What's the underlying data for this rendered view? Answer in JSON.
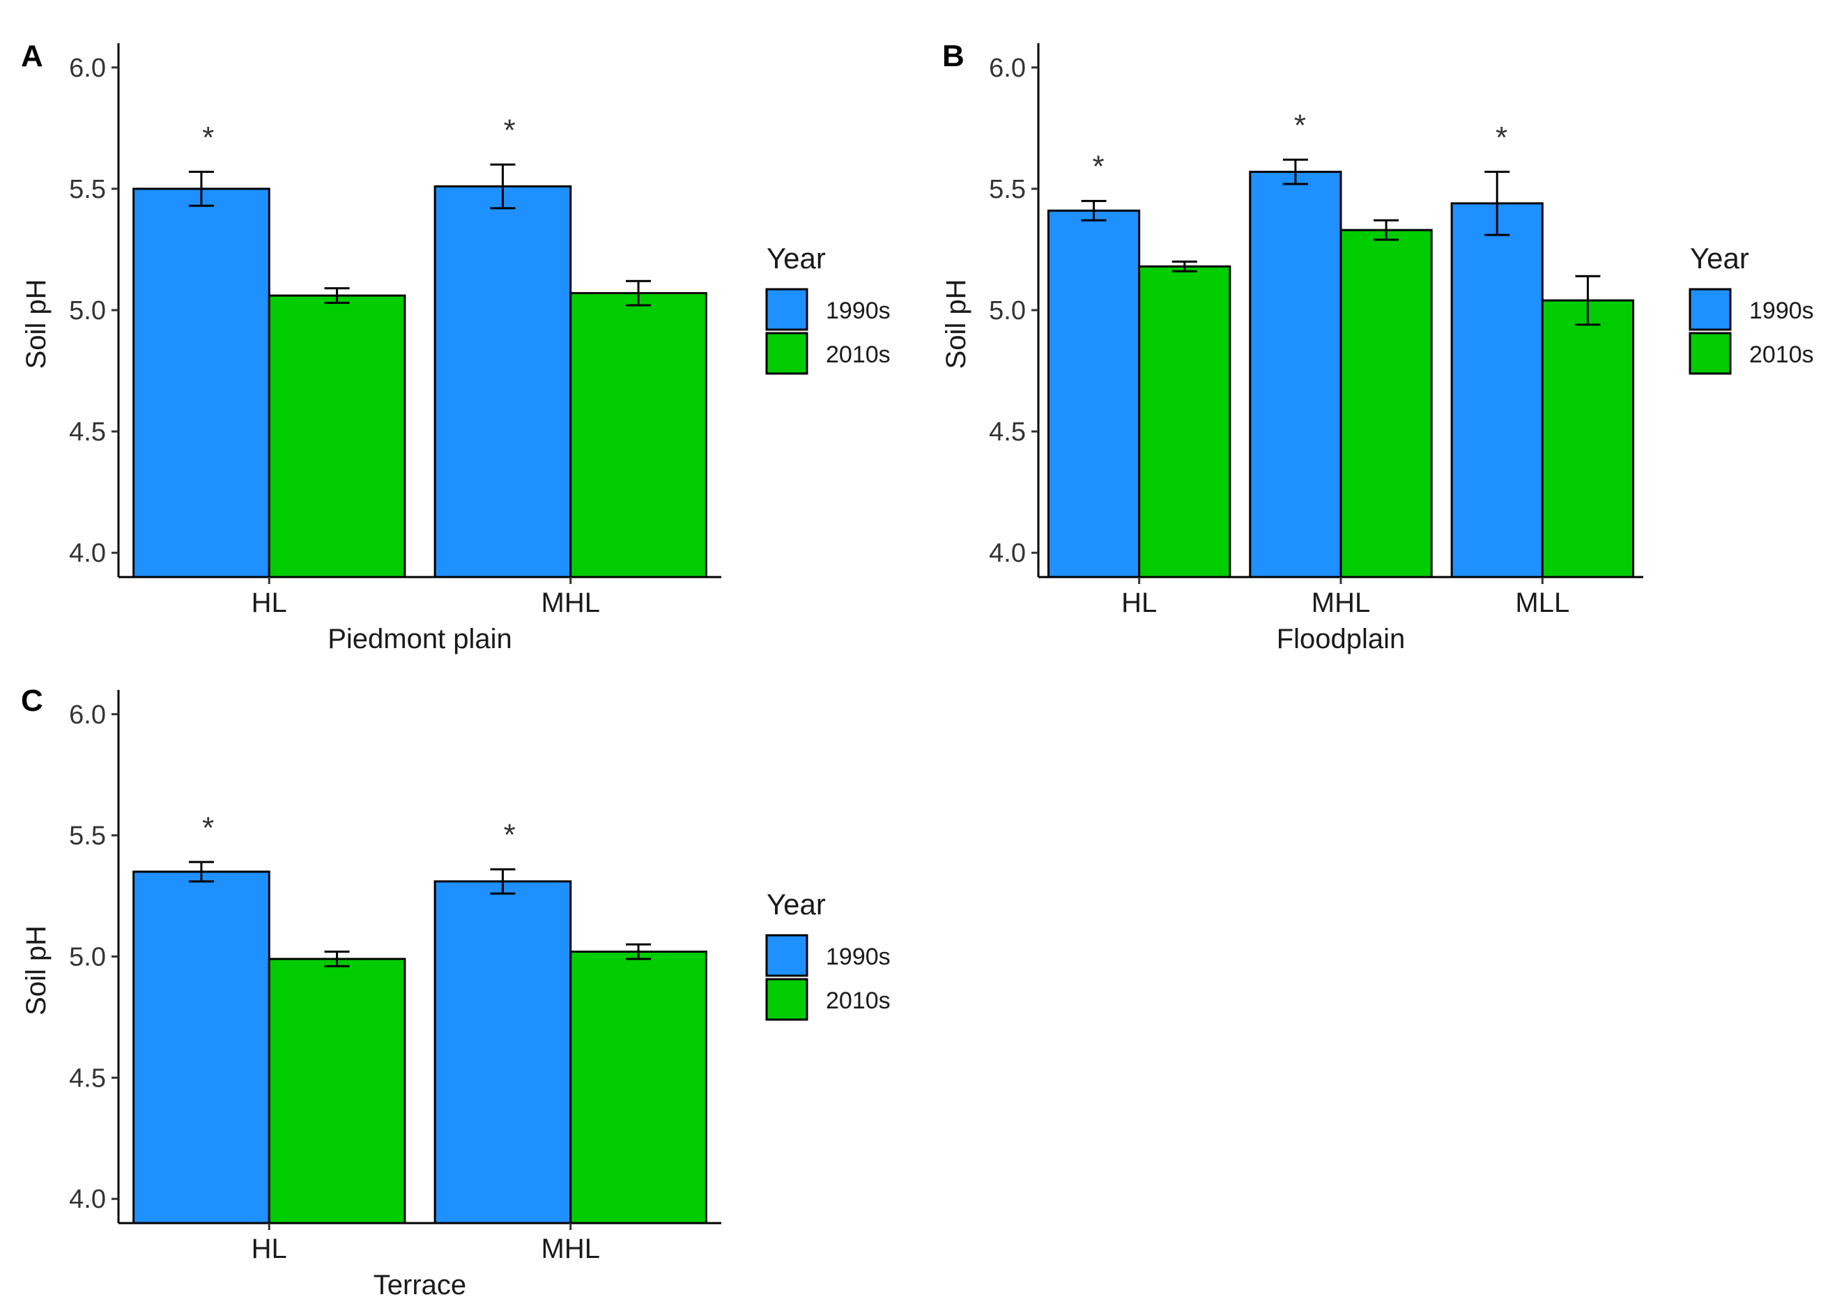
{
  "figure": {
    "y_axis_label": "Soil pH",
    "legend_title": "Year",
    "colors": {
      "1990s": "#1e90ff",
      "2010s": "#00cd00"
    }
  },
  "chart_data": [
    {
      "panel": "A",
      "type": "bar",
      "title": "",
      "xlabel": "Piedmont plain",
      "ylabel": "Soil pH",
      "ylim": [
        3.9,
        6.1
      ],
      "yticks": [
        "4.0",
        "4.5",
        "5.0",
        "5.5",
        "6.0"
      ],
      "categories": [
        "HL",
        "MHL"
      ],
      "series": [
        {
          "name": "1990s",
          "values": [
            5.5,
            5.51
          ],
          "errors": [
            0.07,
            0.09
          ]
        },
        {
          "name": "2010s",
          "values": [
            5.06,
            5.07
          ],
          "errors": [
            0.03,
            0.05
          ]
        }
      ],
      "significance": [
        "*",
        "*"
      ],
      "legend": {
        "title": "Year",
        "entries": [
          "1990s",
          "2010s"
        ],
        "position": "right"
      }
    },
    {
      "panel": "B",
      "type": "bar",
      "title": "",
      "xlabel": "Floodplain",
      "ylabel": "Soil pH",
      "ylim": [
        3.9,
        6.1
      ],
      "yticks": [
        "4.0",
        "4.5",
        "5.0",
        "5.5",
        "6.0"
      ],
      "categories": [
        "HL",
        "MHL",
        "MLL"
      ],
      "series": [
        {
          "name": "1990s",
          "values": [
            5.41,
            5.57,
            5.44
          ],
          "errors": [
            0.04,
            0.05,
            0.13
          ]
        },
        {
          "name": "2010s",
          "values": [
            5.18,
            5.33,
            5.04
          ],
          "errors": [
            0.02,
            0.04,
            0.1
          ]
        }
      ],
      "significance": [
        "*",
        "*",
        "*"
      ],
      "legend": {
        "title": "Year",
        "entries": [
          "1990s",
          "2010s"
        ],
        "position": "right"
      }
    },
    {
      "panel": "C",
      "type": "bar",
      "title": "",
      "xlabel": "Terrace",
      "ylabel": "Soil pH",
      "ylim": [
        3.9,
        6.1
      ],
      "yticks": [
        "4.0",
        "4.5",
        "5.0",
        "5.5",
        "6.0"
      ],
      "categories": [
        "HL",
        "MHL"
      ],
      "series": [
        {
          "name": "1990s",
          "values": [
            5.35,
            5.31
          ],
          "errors": [
            0.04,
            0.05
          ]
        },
        {
          "name": "2010s",
          "values": [
            4.99,
            5.02
          ],
          "errors": [
            0.03,
            0.03
          ]
        }
      ],
      "significance": [
        "*",
        "*"
      ],
      "legend": {
        "title": "Year",
        "entries": [
          "1990s",
          "2010s"
        ],
        "position": "right"
      }
    }
  ]
}
